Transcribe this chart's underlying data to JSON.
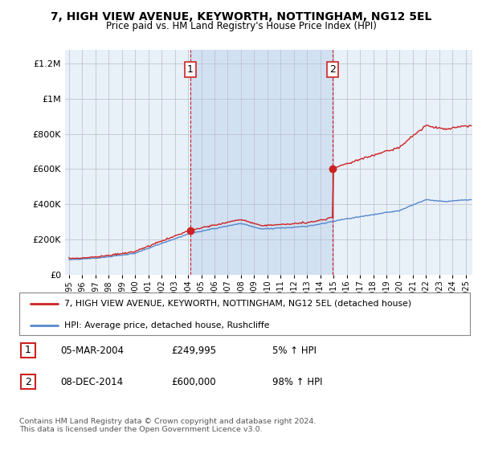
{
  "title": "7, HIGH VIEW AVENUE, KEYWORTH, NOTTINGHAM, NG12 5EL",
  "subtitle": "Price paid vs. HM Land Registry's House Price Index (HPI)",
  "ytick_values": [
    0,
    200000,
    400000,
    600000,
    800000,
    1000000,
    1200000
  ],
  "ylim": [
    0,
    1280000
  ],
  "xlim_start": 1994.7,
  "xlim_end": 2025.5,
  "hpi_color": "#5588cc",
  "price_color": "#cc2222",
  "shade_color": "#ddeeff",
  "purchase1_x": 2004.17,
  "purchase1_y": 249995,
  "purchase2_x": 2014.92,
  "purchase2_y": 600000,
  "legend_house": "7, HIGH VIEW AVENUE, KEYWORTH, NOTTINGHAM, NG12 5EL (detached house)",
  "legend_hpi": "HPI: Average price, detached house, Rushcliffe",
  "table_rows": [
    [
      "1",
      "05-MAR-2004",
      "£249,995",
      "5% ↑ HPI"
    ],
    [
      "2",
      "08-DEC-2014",
      "£600,000",
      "98% ↑ HPI"
    ]
  ],
  "footnote": "Contains HM Land Registry data © Crown copyright and database right 2024.\nThis data is licensed under the Open Government Licence v3.0.",
  "background_color": "#ddeeff",
  "plot_bg_color": "#e8f0f8",
  "grid_color": "#bbbbcc"
}
